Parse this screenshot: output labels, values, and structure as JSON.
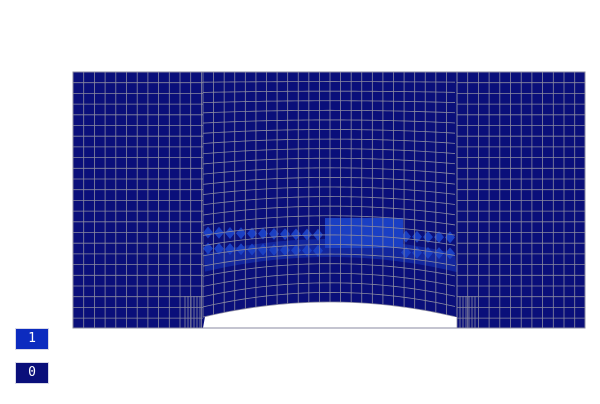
{
  "scene": {
    "background_color": "#ffffff",
    "mesh_base_color": "#0a0f7a",
    "mesh_highlight_color": "#1a3fc4",
    "mesh_mid_color": "#12269e",
    "mesh_line_color": "#8a8aa0",
    "void_shape": "circular arc cutout along bottom edge"
  },
  "legend": {
    "items": [
      {
        "label": "1",
        "color": "#0c2bbf"
      },
      {
        "label": "0",
        "color": "#0a0f7a"
      }
    ]
  }
}
